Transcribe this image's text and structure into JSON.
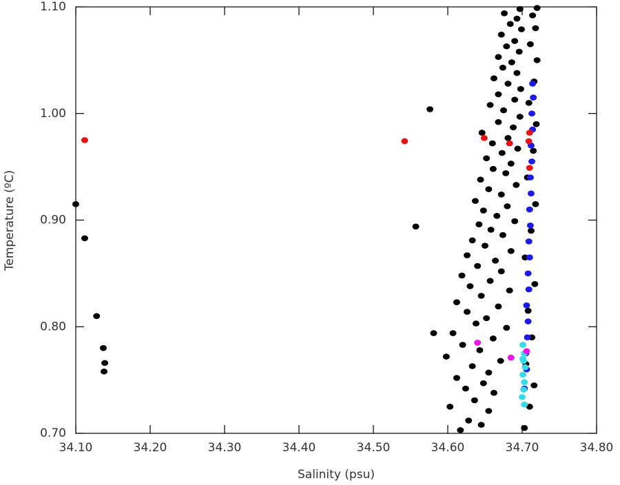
{
  "chart_data": {
    "type": "scatter",
    "x_label": "Salinity (psu)",
    "y_label": "Temperature (ºC)",
    "xlim": [
      34.1,
      34.8
    ],
    "xticks": [
      {
        "value": 34.1,
        "label": "34.10"
      },
      {
        "value": 34.2,
        "label": "34.20"
      },
      {
        "value": 34.3,
        "label": "34.30"
      },
      {
        "value": 34.4,
        "label": "34.40"
      },
      {
        "value": 34.5,
        "label": "34.50"
      },
      {
        "value": 34.6,
        "label": "34.60"
      },
      {
        "value": 34.7,
        "label": "34.70"
      },
      {
        "value": 34.8,
        "label": "34.80"
      }
    ],
    "ylim": [
      0.7,
      1.1
    ],
    "yticks": [
      {
        "value": 0.7,
        "label": "0.70"
      },
      {
        "value": 0.8,
        "label": "0.80"
      },
      {
        "value": 0.9,
        "label": "0.90"
      },
      {
        "value": 1.0,
        "label": "1.00"
      },
      {
        "value": 1.1,
        "label": "1.10"
      }
    ],
    "series": [
      {
        "color": "#000000",
        "x": [
          34.1,
          34.112,
          34.128,
          34.137,
          34.139,
          34.138,
          34.557,
          34.576,
          34.581,
          34.617,
          34.628,
          34.645,
          34.655,
          34.603,
          34.636,
          34.662,
          34.624,
          34.648,
          34.612,
          34.655,
          34.633,
          34.671,
          34.598,
          34.643,
          34.62,
          34.661,
          34.607,
          34.679,
          34.638,
          34.652,
          34.626,
          34.668,
          34.612,
          34.645,
          34.683,
          34.63,
          34.657,
          34.619,
          34.672,
          34.64,
          34.664,
          34.626,
          34.685,
          34.65,
          34.633,
          34.674,
          34.658,
          34.642,
          34.69,
          34.666,
          34.648,
          34.68,
          34.637,
          34.672,
          34.655,
          34.692,
          34.644,
          34.678,
          34.661,
          34.685,
          34.652,
          34.673,
          34.694,
          34.66,
          34.681,
          34.646,
          34.688,
          34.668,
          34.697,
          34.675,
          34.657,
          34.69,
          34.668,
          34.698,
          34.681,
          34.662,
          34.693,
          34.674,
          34.686,
          34.668,
          34.696,
          34.679,
          34.69,
          34.672,
          34.699,
          34.684,
          34.693,
          34.676,
          34.697,
          34.703,
          34.71,
          34.716,
          34.705,
          34.713,
          34.708,
          34.717,
          34.704,
          34.712,
          34.718,
          34.707,
          34.715,
          34.719,
          34.709,
          34.716,
          34.72,
          34.711,
          34.718,
          34.714,
          34.72
        ],
        "y": [
          0.915,
          0.883,
          0.81,
          0.78,
          0.766,
          0.758,
          0.894,
          1.004,
          0.794,
          0.703,
          0.712,
          0.708,
          0.721,
          0.725,
          0.731,
          0.738,
          0.742,
          0.747,
          0.752,
          0.757,
          0.763,
          0.768,
          0.772,
          0.778,
          0.783,
          0.789,
          0.794,
          0.799,
          0.803,
          0.808,
          0.814,
          0.819,
          0.823,
          0.829,
          0.834,
          0.838,
          0.843,
          0.848,
          0.852,
          0.857,
          0.862,
          0.867,
          0.871,
          0.876,
          0.881,
          0.886,
          0.891,
          0.896,
          0.899,
          0.904,
          0.909,
          0.913,
          0.918,
          0.924,
          0.929,
          0.933,
          0.938,
          0.944,
          0.948,
          0.953,
          0.958,
          0.963,
          0.967,
          0.972,
          0.977,
          0.982,
          0.987,
          0.992,
          0.997,
          1.003,
          1.008,
          1.013,
          1.018,
          1.023,
          1.028,
          1.033,
          1.038,
          1.043,
          1.048,
          1.053,
          1.058,
          1.063,
          1.068,
          1.074,
          1.079,
          1.084,
          1.089,
          1.094,
          1.098,
          0.705,
          0.725,
          0.745,
          0.765,
          0.79,
          0.815,
          0.84,
          0.865,
          0.89,
          0.915,
          0.94,
          0.965,
          0.99,
          1.01,
          1.03,
          1.05,
          1.065,
          1.08,
          1.092,
          1.099
        ]
      },
      {
        "color": "#1a1aee",
        "x": [
          34.703,
          34.706,
          34.705,
          34.707,
          34.708,
          34.706,
          34.709,
          34.708,
          34.71,
          34.709,
          34.711,
          34.71,
          34.712,
          34.711,
          34.713,
          34.712,
          34.714,
          34.713,
          34.715,
          34.714
        ],
        "y": [
          0.742,
          0.76,
          0.775,
          0.79,
          0.805,
          0.82,
          0.835,
          0.85,
          0.865,
          0.88,
          0.895,
          0.91,
          0.925,
          0.94,
          0.955,
          0.97,
          0.985,
          1.0,
          1.015,
          1.028
        ]
      },
      {
        "color": "#33dde8",
        "x": [
          34.701,
          34.703,
          34.702,
          34.704,
          34.701,
          34.703,
          34.702,
          34.7,
          34.703,
          34.701
        ],
        "y": [
          0.783,
          0.775,
          0.768,
          0.762,
          0.755,
          0.748,
          0.741,
          0.734,
          0.727,
          0.77
        ]
      },
      {
        "color": "#ee1111",
        "x": [
          34.112,
          34.542,
          34.649,
          34.683,
          34.71,
          34.709,
          34.71
        ],
        "y": [
          0.975,
          0.974,
          0.977,
          0.972,
          0.982,
          0.974,
          0.949
        ]
      },
      {
        "color": "#ee11ee",
        "x": [
          34.64,
          34.685,
          34.706
        ],
        "y": [
          0.785,
          0.771,
          0.777
        ]
      }
    ]
  }
}
